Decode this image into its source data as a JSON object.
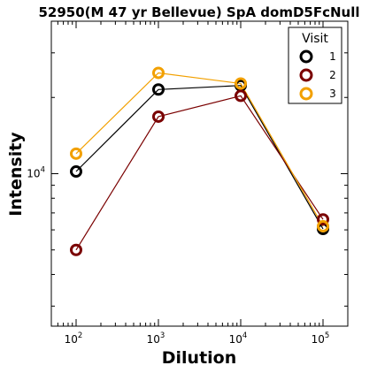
{
  "chart_data": {
    "type": "line",
    "title": "52950(M 47 yr Bellevue) SpA domD5FcNull",
    "xlabel": "Dilution",
    "ylabel": "Intensity",
    "x_scale": "log",
    "y_scale": "log",
    "x": [
      100,
      1000,
      10000,
      100000
    ],
    "x_tick_labels": [
      {
        "base": "10",
        "exp": "2"
      },
      {
        "base": "10",
        "exp": "3"
      },
      {
        "base": "10",
        "exp": "4"
      },
      {
        "base": "10",
        "exp": "5"
      }
    ],
    "y_tick_labels": [
      {
        "base": "10",
        "exp": "4",
        "value": 10000
      }
    ],
    "xlim": [
      50,
      200000
    ],
    "ylim": [
      2500,
      40000
    ],
    "grid": false,
    "legend": {
      "title": "Visit",
      "placement": "top-right"
    },
    "series": [
      {
        "name": "1",
        "color": "#000000",
        "values": [
          10200,
          21500,
          22300,
          6050
        ]
      },
      {
        "name": "2",
        "color": "#7a0000",
        "values": [
          5000,
          16800,
          20300,
          6600
        ]
      },
      {
        "name": "3",
        "color": "#f2a000",
        "values": [
          12000,
          25000,
          22700,
          6200
        ]
      }
    ]
  }
}
